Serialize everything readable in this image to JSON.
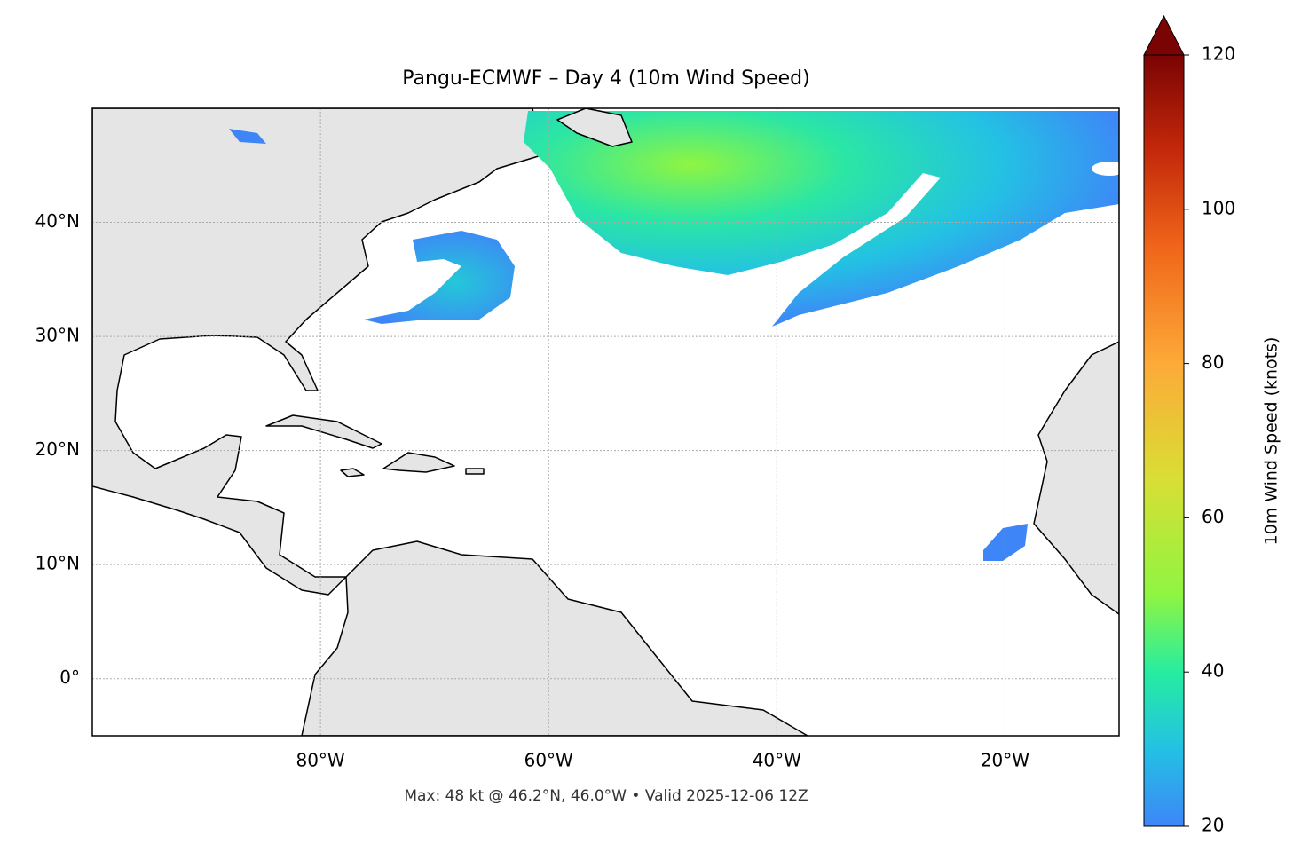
{
  "chart_data": {
    "type": "map",
    "title": "Pangu-ECMWF – Day 4 (10m Wind Speed)",
    "footer": "Max: 48 kt @ 46.2°N, 46.0°W • Valid 2025-12-06 12Z",
    "xlim": [
      -100,
      -10
    ],
    "ylim": [
      -5,
      50
    ],
    "xticks": [
      {
        "value": -80,
        "label": "80°W"
      },
      {
        "value": -60,
        "label": "60°W"
      },
      {
        "value": -40,
        "label": "40°W"
      },
      {
        "value": -20,
        "label": "20°W"
      }
    ],
    "yticks": [
      {
        "value": 0,
        "label": "0°"
      },
      {
        "value": 10,
        "label": "10°N"
      },
      {
        "value": 20,
        "label": "20°N"
      },
      {
        "value": 30,
        "label": "30°N"
      },
      {
        "value": 40,
        "label": "40°N"
      }
    ],
    "grid": true,
    "colorbar": {
      "label": "10m Wind Speed (knots)",
      "clim": [
        20,
        120
      ],
      "ticks": [
        20,
        40,
        60,
        80,
        100,
        120
      ],
      "extend": "max"
    }
  }
}
